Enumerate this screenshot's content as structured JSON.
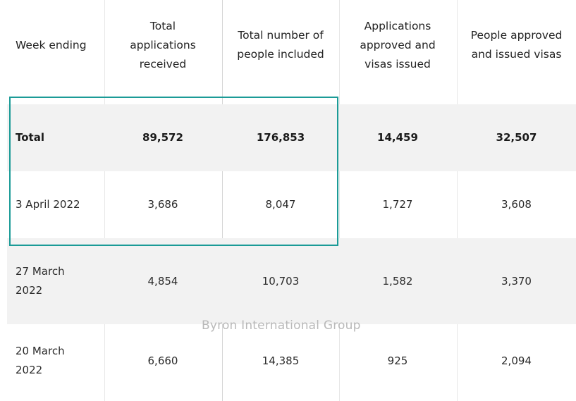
{
  "table": {
    "headers": [
      "Week ending",
      "Total applications received",
      "Total number of people included",
      "Applications approved and visas issued",
      "People approved and issued visas"
    ],
    "rows": [
      [
        "Total",
        "89,572",
        "176,853",
        "14,459",
        "32,507"
      ],
      [
        "3 April 2022",
        "3,686",
        "8,047",
        "1,727",
        "3,608"
      ],
      [
        "27 March 2022",
        "4,854",
        "10,703",
        "1,582",
        "3,370"
      ],
      [
        "20 March 2022",
        "6,660",
        "14,385",
        "925",
        "2,094"
      ]
    ]
  },
  "watermark": "Byron International Group",
  "colors": {
    "highlight_border": "#1b9b97",
    "row_shade": "#f2f2f2"
  }
}
